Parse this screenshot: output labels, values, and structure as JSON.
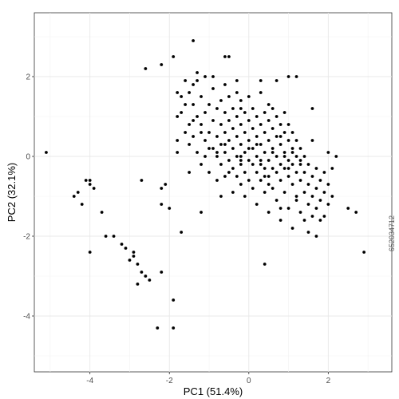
{
  "watermark_id": "652034712",
  "chart_data": {
    "type": "scatter",
    "title": "",
    "xlabel": "PC1 (51.4%)",
    "ylabel": "PC2 (32.1%)",
    "xlim": [
      -5.4,
      3.6
    ],
    "ylim": [
      -5.4,
      3.6
    ],
    "x_ticks": [
      -4,
      -2,
      0,
      2
    ],
    "y_ticks": [
      -4,
      -2,
      0,
      2
    ],
    "grid": true,
    "point_color": "#000000",
    "points": [
      [
        -5.1,
        0.1
      ],
      [
        -4.4,
        -1.0
      ],
      [
        -4.3,
        -0.9
      ],
      [
        -4.2,
        -1.2
      ],
      [
        -4.1,
        -0.6
      ],
      [
        -4.0,
        -0.6
      ],
      [
        -4.0,
        -0.7
      ],
      [
        -3.9,
        -0.8
      ],
      [
        -4.0,
        -2.4
      ],
      [
        -3.7,
        -1.4
      ],
      [
        -3.6,
        -2.0
      ],
      [
        -3.4,
        -2.0
      ],
      [
        -3.2,
        -2.2
      ],
      [
        -3.1,
        -2.3
      ],
      [
        -2.9,
        -2.4
      ],
      [
        -2.9,
        -2.5
      ],
      [
        -3.0,
        -2.6
      ],
      [
        -2.8,
        -2.7
      ],
      [
        -2.7,
        -2.9
      ],
      [
        -2.6,
        -3.0
      ],
      [
        -2.5,
        -3.1
      ],
      [
        -2.8,
        -3.2
      ],
      [
        -2.7,
        -0.6
      ],
      [
        -2.2,
        -0.8
      ],
      [
        -2.1,
        -0.7
      ],
      [
        -2.2,
        -1.2
      ],
      [
        -2.0,
        -1.3
      ],
      [
        -2.2,
        -2.9
      ],
      [
        -1.9,
        -3.6
      ],
      [
        -2.3,
        -4.3
      ],
      [
        -1.9,
        -4.3
      ],
      [
        -1.7,
        -1.9
      ],
      [
        -2.6,
        2.2
      ],
      [
        -2.2,
        2.3
      ],
      [
        -1.9,
        2.5
      ],
      [
        -1.4,
        2.9
      ],
      [
        -0.6,
        2.5
      ],
      [
        -0.5,
        2.5
      ],
      [
        -0.2,
        1.2
      ],
      [
        1.2,
        2.0
      ],
      [
        1.6,
        1.2
      ],
      [
        2.0,
        0.1
      ],
      [
        2.5,
        -1.3
      ],
      [
        2.7,
        -1.4
      ],
      [
        2.9,
        -2.4
      ],
      [
        0.4,
        -2.7
      ],
      [
        -1.2,
        -1.4
      ],
      [
        -1.8,
        0.1
      ],
      [
        -1.8,
        0.4
      ],
      [
        -1.8,
        1.0
      ],
      [
        -1.8,
        1.6
      ],
      [
        -1.7,
        1.1
      ],
      [
        -1.7,
        1.5
      ],
      [
        -1.6,
        0.6
      ],
      [
        -1.6,
        1.3
      ],
      [
        -1.6,
        1.9
      ],
      [
        -1.5,
        0.3
      ],
      [
        -1.5,
        0.8
      ],
      [
        -1.5,
        1.6
      ],
      [
        -1.5,
        -0.4
      ],
      [
        -1.4,
        0.5
      ],
      [
        -1.4,
        1.3
      ],
      [
        -1.4,
        1.8
      ],
      [
        -1.3,
        0.1
      ],
      [
        -1.3,
        1.0
      ],
      [
        -1.3,
        1.9
      ],
      [
        -1.2,
        0.6
      ],
      [
        -1.2,
        0.8
      ],
      [
        -1.2,
        1.5
      ],
      [
        -1.2,
        -0.2
      ],
      [
        -1.1,
        0.0
      ],
      [
        -1.1,
        0.4
      ],
      [
        -1.1,
        1.1
      ],
      [
        -1.1,
        2.0
      ],
      [
        -1.0,
        0.6
      ],
      [
        -1.0,
        1.3
      ],
      [
        -1.0,
        -0.4
      ],
      [
        -0.9,
        0.2
      ],
      [
        -0.9,
        0.9
      ],
      [
        -0.9,
        1.7
      ],
      [
        -0.8,
        0.5
      ],
      [
        -0.8,
        0.0
      ],
      [
        -0.8,
        1.2
      ],
      [
        -0.8,
        -0.6
      ],
      [
        -0.7,
        0.3
      ],
      [
        -0.7,
        0.8
      ],
      [
        -0.7,
        1.4
      ],
      [
        -0.7,
        -0.2
      ],
      [
        -0.6,
        0.1
      ],
      [
        -0.6,
        0.6
      ],
      [
        -0.6,
        1.1
      ],
      [
        -0.6,
        1.8
      ],
      [
        -0.6,
        -0.5
      ],
      [
        -0.5,
        0.4
      ],
      [
        -0.5,
        0.9
      ],
      [
        -0.5,
        -0.1
      ],
      [
        -0.5,
        1.5
      ],
      [
        -0.4,
        0.2
      ],
      [
        -0.4,
        0.7
      ],
      [
        -0.4,
        -0.3
      ],
      [
        -0.4,
        1.2
      ],
      [
        -0.4,
        -0.9
      ],
      [
        -0.3,
        0.0
      ],
      [
        -0.3,
        0.5
      ],
      [
        -0.3,
        1.0
      ],
      [
        -0.3,
        -0.5
      ],
      [
        -0.3,
        1.6
      ],
      [
        -0.2,
        0.3
      ],
      [
        -0.2,
        0.8
      ],
      [
        -0.2,
        -0.2
      ],
      [
        -0.2,
        -0.7
      ],
      [
        -0.2,
        1.4
      ],
      [
        -0.1,
        0.1
      ],
      [
        -0.1,
        0.6
      ],
      [
        -0.1,
        -0.4
      ],
      [
        -0.1,
        1.1
      ],
      [
        -0.1,
        -1.0
      ],
      [
        0.0,
        -0.1
      ],
      [
        0.0,
        0.4
      ],
      [
        0.0,
        0.9
      ],
      [
        0.0,
        -0.6
      ],
      [
        0.0,
        1.5
      ],
      [
        0.1,
        0.2
      ],
      [
        0.1,
        -0.2
      ],
      [
        0.1,
        0.7
      ],
      [
        0.1,
        -0.8
      ],
      [
        0.1,
        1.2
      ],
      [
        0.2,
        0.0
      ],
      [
        0.2,
        0.5
      ],
      [
        0.2,
        -0.4
      ],
      [
        0.2,
        1.0
      ],
      [
        0.2,
        -1.2
      ],
      [
        0.3,
        0.3
      ],
      [
        0.3,
        -0.1
      ],
      [
        0.3,
        0.8
      ],
      [
        0.3,
        -0.6
      ],
      [
        0.3,
        1.6
      ],
      [
        0.4,
        0.1
      ],
      [
        0.4,
        0.6
      ],
      [
        0.4,
        -0.3
      ],
      [
        0.4,
        1.1
      ],
      [
        0.4,
        -0.9
      ],
      [
        0.5,
        0.4
      ],
      [
        0.5,
        -0.1
      ],
      [
        0.5,
        0.9
      ],
      [
        0.5,
        -0.5
      ],
      [
        0.5,
        -1.4
      ],
      [
        0.6,
        0.2
      ],
      [
        0.6,
        0.7
      ],
      [
        0.6,
        -0.3
      ],
      [
        0.6,
        1.2
      ],
      [
        0.6,
        -0.8
      ],
      [
        0.7,
        0.0
      ],
      [
        0.7,
        0.5
      ],
      [
        0.7,
        -0.4
      ],
      [
        0.7,
        1.0
      ],
      [
        0.7,
        -1.1
      ],
      [
        0.8,
        0.3
      ],
      [
        0.8,
        -0.2
      ],
      [
        0.8,
        0.8
      ],
      [
        0.8,
        -0.6
      ],
      [
        0.8,
        -1.6
      ],
      [
        0.9,
        0.1
      ],
      [
        0.9,
        0.6
      ],
      [
        0.9,
        -0.3
      ],
      [
        0.9,
        1.1
      ],
      [
        0.9,
        -0.9
      ],
      [
        1.0,
        0.4
      ],
      [
        1.0,
        -0.1
      ],
      [
        1.0,
        0.8
      ],
      [
        1.0,
        -0.5
      ],
      [
        1.0,
        -1.3
      ],
      [
        1.1,
        0.2
      ],
      [
        1.1,
        -0.2
      ],
      [
        1.1,
        0.6
      ],
      [
        1.1,
        -0.7
      ],
      [
        1.1,
        -1.8
      ],
      [
        1.2,
        0.0
      ],
      [
        1.2,
        0.4
      ],
      [
        1.2,
        -0.4
      ],
      [
        1.2,
        -1.0
      ],
      [
        1.3,
        0.2
      ],
      [
        1.3,
        -0.2
      ],
      [
        1.3,
        -0.6
      ],
      [
        1.3,
        -1.4
      ],
      [
        1.4,
        0.0
      ],
      [
        1.4,
        -0.4
      ],
      [
        1.4,
        -0.9
      ],
      [
        1.4,
        -1.6
      ],
      [
        1.5,
        -0.2
      ],
      [
        1.5,
        -0.7
      ],
      [
        1.5,
        -1.2
      ],
      [
        1.5,
        -1.9
      ],
      [
        1.6,
        -0.5
      ],
      [
        1.6,
        -1.0
      ],
      [
        1.6,
        -1.5
      ],
      [
        1.7,
        -0.3
      ],
      [
        1.7,
        -0.8
      ],
      [
        1.7,
        -1.3
      ],
      [
        1.7,
        -2.0
      ],
      [
        1.8,
        -0.6
      ],
      [
        1.8,
        -1.1
      ],
      [
        1.8,
        -1.6
      ],
      [
        1.9,
        -0.4
      ],
      [
        1.9,
        -0.9
      ],
      [
        1.9,
        -1.5
      ],
      [
        2.0,
        -0.7
      ],
      [
        2.0,
        -1.2
      ],
      [
        2.1,
        -0.3
      ],
      [
        2.1,
        -1.0
      ],
      [
        2.2,
        0.0
      ],
      [
        -0.9,
        2.0
      ],
      [
        -0.3,
        1.9
      ],
      [
        0.3,
        1.9
      ],
      [
        0.7,
        1.9
      ],
      [
        1.0,
        2.0
      ],
      [
        -1.3,
        2.1
      ],
      [
        -0.8,
        0.1
      ],
      [
        -0.2,
        0.0
      ],
      [
        0.6,
        0.1
      ],
      [
        0.9,
        0.0
      ],
      [
        0.3,
        -0.2
      ],
      [
        -0.5,
        -0.4
      ],
      [
        0.5,
        -0.7
      ],
      [
        1.3,
        -0.1
      ],
      [
        -1.0,
        0.2
      ],
      [
        0.0,
        0.2
      ],
      [
        0.8,
        0.5
      ],
      [
        -0.6,
        0.3
      ],
      [
        0.2,
        0.3
      ],
      [
        1.1,
        0.1
      ],
      [
        -0.2,
        -0.1
      ],
      [
        0.4,
        -0.5
      ],
      [
        1.0,
        -0.3
      ],
      [
        -1.4,
        0.9
      ],
      [
        0.5,
        1.3
      ],
      [
        1.6,
        0.4
      ],
      [
        -0.7,
        -1.0
      ],
      [
        0.8,
        -1.3
      ],
      [
        1.2,
        -1.1
      ]
    ]
  }
}
